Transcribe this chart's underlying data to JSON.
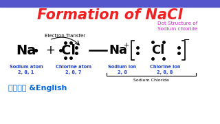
{
  "title": "Formation of NaCl",
  "title_color": "#ee2222",
  "bg_color": "#ffffff",
  "top_bar_color": "#5555cc",
  "dot_structure_label": "Dot Structure of\nSodium chloride",
  "dot_structure_color": "#cc22cc",
  "electron_transfer_label": "Electron Transfer",
  "bottom_labels": [
    "Sodium atom",
    "Chlorine atom",
    "Sodium ion",
    "Chlorine ion"
  ],
  "bottom_sublabels": [
    "2, 8, 1",
    "2, 8, 7",
    "2, 8",
    "2, 8, 8"
  ],
  "bottom_label_color": "#2244cc",
  "sodium_chloride_label": "Sodium Chloride",
  "kannada_label": "ಕಂనడ &English",
  "kannada_color": "#0066dd"
}
